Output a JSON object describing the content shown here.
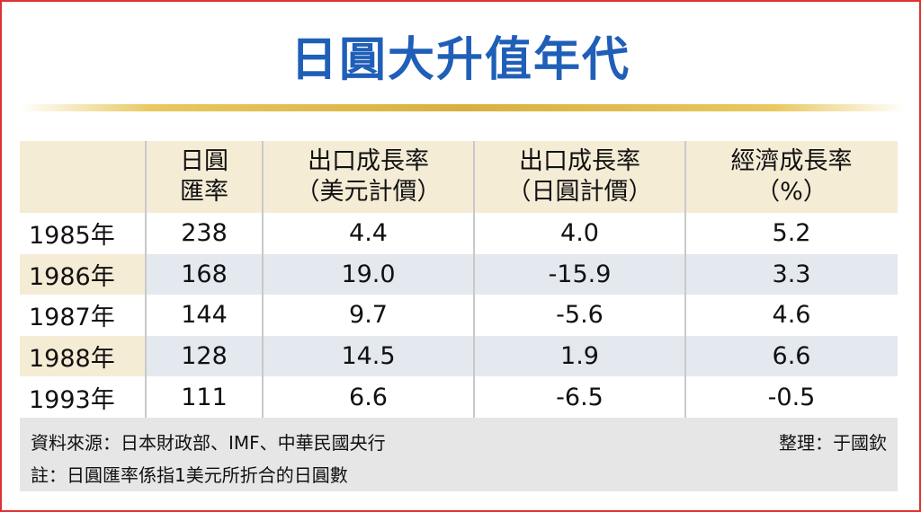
{
  "header": {
    "title": "日圓大升值年代"
  },
  "table": {
    "columns": [
      {
        "line1": "日圓",
        "line2": "匯率"
      },
      {
        "line1": "出口成長率",
        "line2": "（美元計價）"
      },
      {
        "line1": "出口成長率",
        "line2": "（日圓計價）"
      },
      {
        "line1": "經濟成長率",
        "line2": "（%）"
      }
    ],
    "rows": [
      [
        "1985年",
        "238",
        "4.4",
        "4.0",
        "5.2"
      ],
      [
        "1986年",
        "168",
        "19.0",
        "-15.9",
        "3.3"
      ],
      [
        "1987年",
        "144",
        "9.7",
        "-5.6",
        "4.6"
      ],
      [
        "1988年",
        "128",
        "14.5",
        "1.9",
        "6.6"
      ],
      [
        "1993年",
        "111",
        "6.6",
        "-6.5",
        "-0.5"
      ]
    ]
  },
  "footer": {
    "source": "資料來源：日本財政部、IMF、中華民國央行",
    "editor": "整理：于國欽",
    "note": "註：日圓匯率係指1美元所折合的日圓數"
  }
}
